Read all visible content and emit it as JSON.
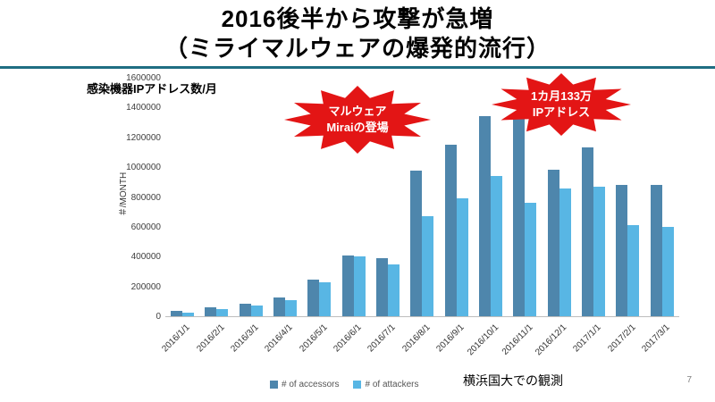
{
  "title": {
    "line1": "2016後半から攻撃が急増",
    "line2": "（ミライマルウェアの爆発的流行）"
  },
  "chart_label": "感染機器IPアドレス数/月",
  "annotations": {
    "mirai": {
      "line1": "マルウェア",
      "line2": "Miraiの登場"
    },
    "peak": {
      "line1": "1カ月133万",
      "line2": "IPアドレス"
    }
  },
  "footer": {
    "observation": "横浜国大での観測",
    "page": "7"
  },
  "colors": {
    "accessors": "#4e86ac",
    "attackers": "#58b6e4",
    "starburst": "#e31515",
    "divider": "#1f6e82"
  },
  "chart_data": {
    "type": "bar",
    "title": "感染機器IPアドレス数/月",
    "xlabel": "",
    "ylabel": "＃/MONTH",
    "ylim": [
      0,
      1600000
    ],
    "yticks": [
      0,
      200000,
      400000,
      600000,
      800000,
      1000000,
      1200000,
      1400000,
      1600000
    ],
    "grid": false,
    "legend_position": "bottom",
    "categories": [
      "2016/1/1",
      "2016/2/1",
      "2016/3/1",
      "2016/4/1",
      "2016/5/1",
      "2016/6/1",
      "2016/7/1",
      "2016/8/1",
      "2016/9/1",
      "2016/10/1",
      "2016/11/1",
      "2016/12/1",
      "2017/1/1",
      "2017/2/1",
      "2017/3/1"
    ],
    "series": [
      {
        "name": "# of accessors",
        "color": "#4e86ac",
        "values": [
          35000,
          60000,
          85000,
          125000,
          245000,
          410000,
          390000,
          980000,
          1150000,
          1340000,
          1330000,
          985000,
          1130000,
          880000,
          880000
        ]
      },
      {
        "name": "# of attackers",
        "color": "#58b6e4",
        "values": [
          25000,
          50000,
          75000,
          110000,
          230000,
          400000,
          350000,
          670000,
          790000,
          940000,
          760000,
          860000,
          870000,
          610000,
          600000
        ]
      }
    ]
  }
}
